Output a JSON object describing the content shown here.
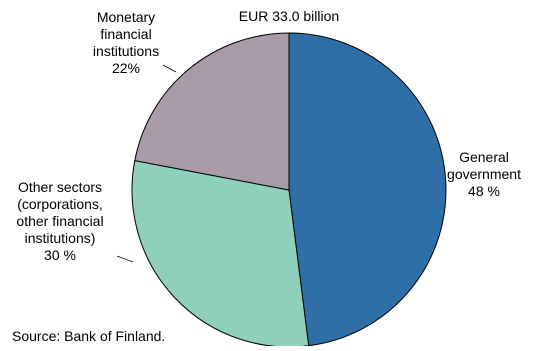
{
  "chart_data": {
    "type": "pie",
    "title": "EUR 33.0 billion",
    "source": "Source: Bank of Finland.",
    "slices": [
      {
        "label_lines": [
          "General",
          "government",
          "48 %"
        ],
        "value": 48,
        "color": "#2f6fa8"
      },
      {
        "label_lines": [
          "Other sectors",
          "(corporations,",
          "other financial",
          "institutions)",
          "30 %"
        ],
        "value": 30,
        "color": "#8fd0bd"
      },
      {
        "label_lines": [
          "Monetary",
          "financial",
          "institutions",
          "22%"
        ],
        "value": 22,
        "color": "#aa9ba8"
      }
    ]
  }
}
